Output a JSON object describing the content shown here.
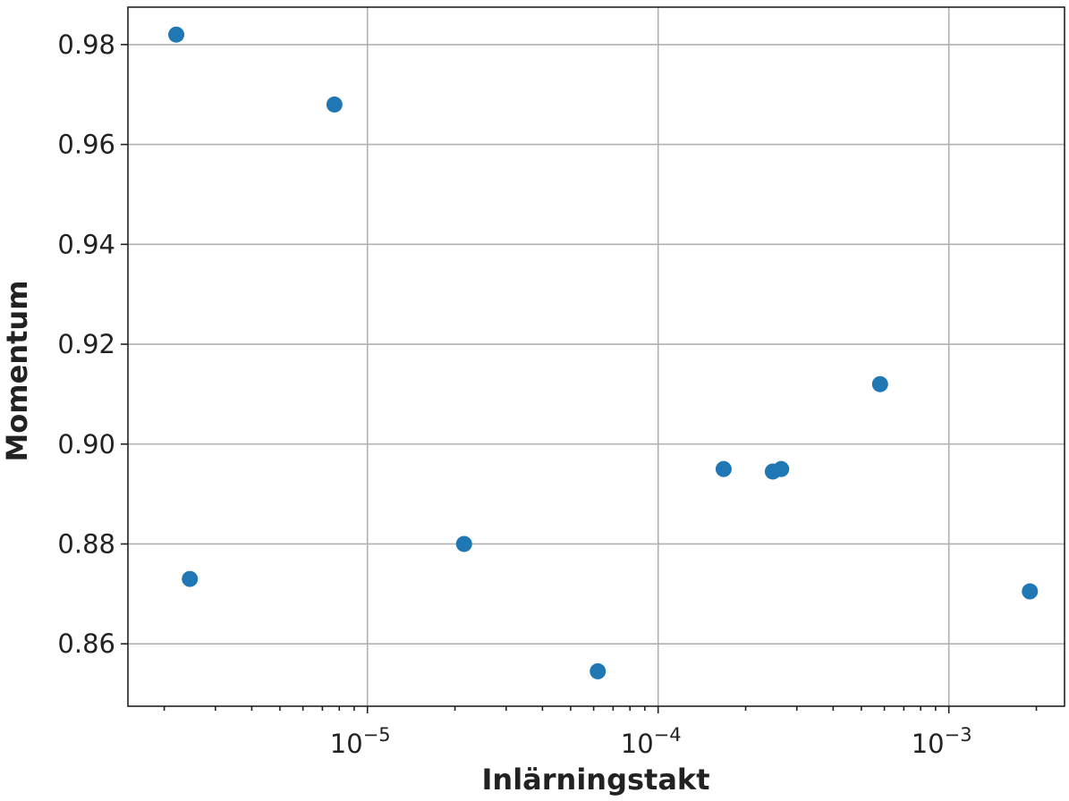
{
  "chart_data": {
    "type": "scatter",
    "xlabel": "Inlärningstakt",
    "ylabel": "Momentum",
    "xscale": "log",
    "xlim": [
      1.5e-06,
      0.0025
    ],
    "ylim": [
      0.8475,
      0.9875
    ],
    "grid": true,
    "marker_color": "#1f77b4",
    "x_ticks": [
      {
        "value": 1e-05,
        "base": "10",
        "exp": "−5"
      },
      {
        "value": 0.0001,
        "base": "10",
        "exp": "−4"
      },
      {
        "value": 0.001,
        "base": "10",
        "exp": "−3"
      }
    ],
    "y_ticks": [
      {
        "value": 0.86,
        "label": "0.86"
      },
      {
        "value": 0.88,
        "label": "0.88"
      },
      {
        "value": 0.9,
        "label": "0.90"
      },
      {
        "value": 0.92,
        "label": "0.92"
      },
      {
        "value": 0.94,
        "label": "0.94"
      },
      {
        "value": 0.96,
        "label": "0.96"
      },
      {
        "value": 0.98,
        "label": "0.98"
      }
    ],
    "points": [
      {
        "x": 2.2e-06,
        "y": 0.982
      },
      {
        "x": 2.45e-06,
        "y": 0.873
      },
      {
        "x": 7.7e-06,
        "y": 0.968
      },
      {
        "x": 2.15e-05,
        "y": 0.88
      },
      {
        "x": 6.2e-05,
        "y": 0.8545
      },
      {
        "x": 0.000168,
        "y": 0.895
      },
      {
        "x": 0.000248,
        "y": 0.8945
      },
      {
        "x": 0.000265,
        "y": 0.895
      },
      {
        "x": 0.00058,
        "y": 0.912
      },
      {
        "x": 0.0019,
        "y": 0.8705
      }
    ]
  }
}
